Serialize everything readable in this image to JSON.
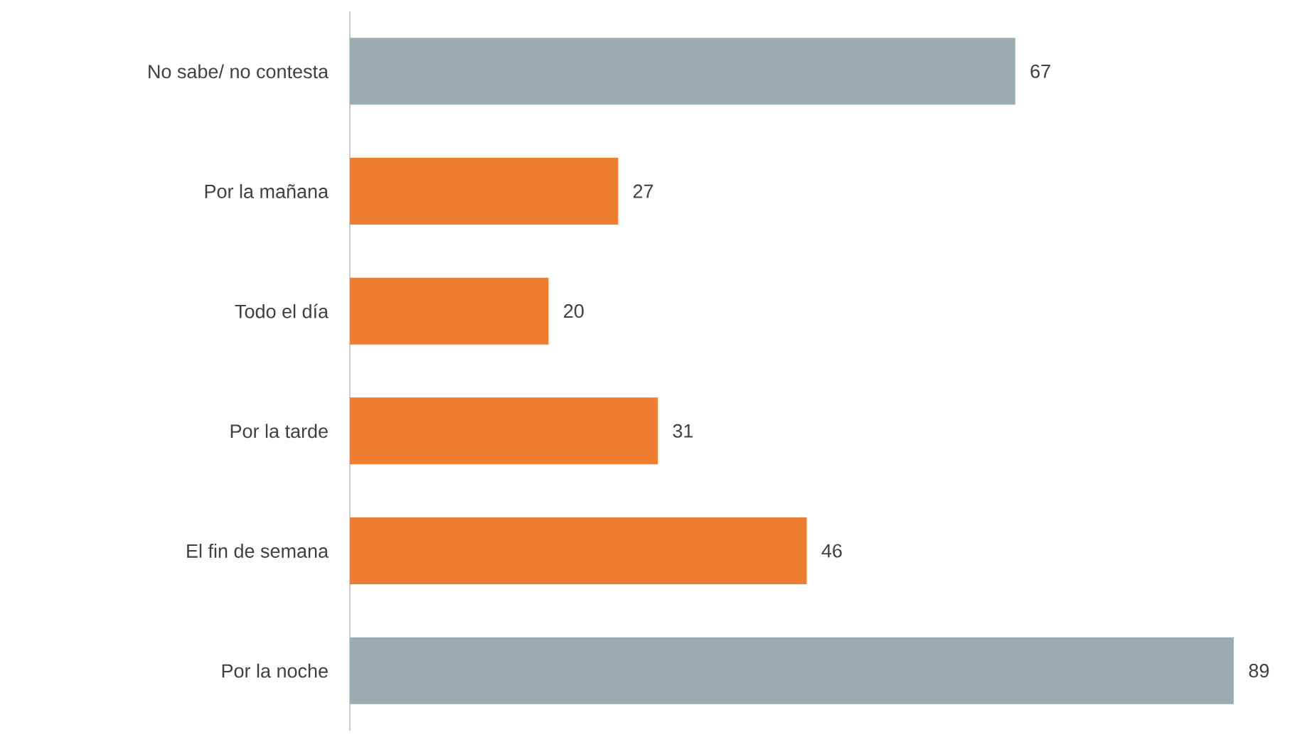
{
  "chart_data": {
    "type": "bar",
    "orientation": "horizontal",
    "categories": [
      "No sabe/ no contesta",
      "Por la mañana",
      "Todo el día",
      "Por la tarde",
      "El fin de semana",
      "Por la noche"
    ],
    "values": [
      67,
      27,
      20,
      31,
      46,
      89
    ],
    "colors": [
      "#9aabb2",
      "#ed7d31",
      "#ed7d31",
      "#ed7d31",
      "#ed7d31",
      "#9aabb2"
    ],
    "data_labels": true
  }
}
